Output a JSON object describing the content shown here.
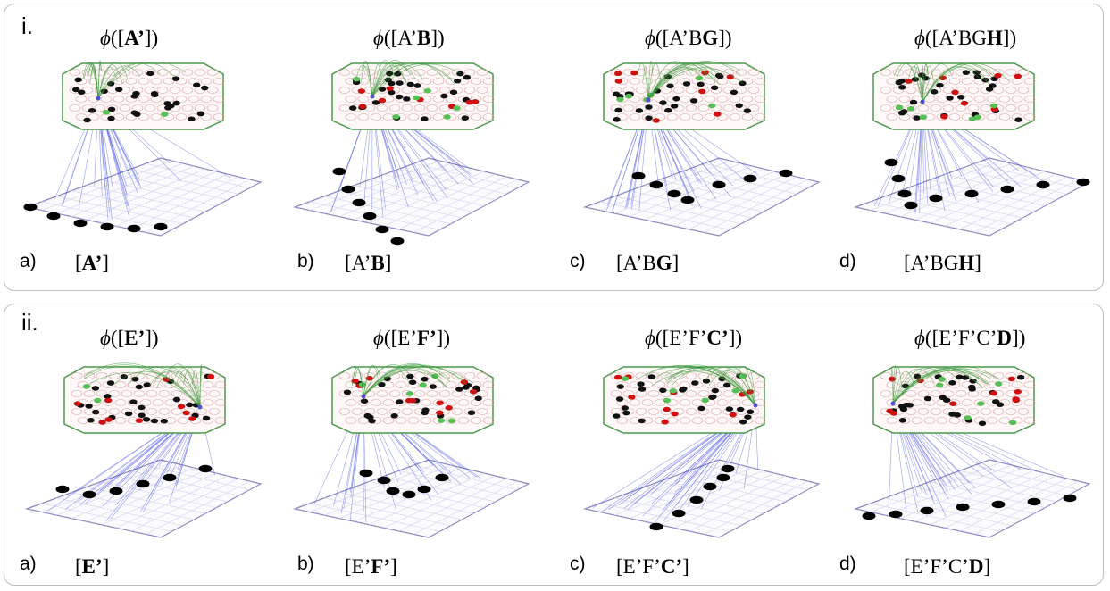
{
  "panels": [
    {
      "label": "i.",
      "items": [
        {
          "sub": "a)",
          "phi_sym": "ϕ",
          "phi_prefix": "([",
          "plain": "",
          "bold": "A’",
          "phi_suffix": "])",
          "seq_open": "[",
          "seq_close": "]"
        },
        {
          "sub": "b)",
          "phi_sym": "ϕ",
          "phi_prefix": "([",
          "plain": "A’",
          "bold": "B",
          "phi_suffix": "])",
          "seq_open": "[",
          "seq_close": "]"
        },
        {
          "sub": "c)",
          "phi_sym": "ϕ",
          "phi_prefix": "([",
          "plain": "A’B",
          "bold": "G",
          "phi_suffix": "])",
          "seq_open": "[",
          "seq_close": "]"
        },
        {
          "sub": "d)",
          "phi_sym": "ϕ",
          "phi_prefix": "([",
          "plain": "A’BG",
          "bold": "H",
          "phi_suffix": "])",
          "seq_open": "[",
          "seq_close": "]"
        }
      ]
    },
    {
      "label": "ii.",
      "items": [
        {
          "sub": "a)",
          "phi_sym": "ϕ",
          "phi_prefix": "([",
          "plain": "",
          "bold": "E’",
          "phi_suffix": "])",
          "seq_open": "[",
          "seq_close": "]"
        },
        {
          "sub": "b)",
          "phi_sym": "ϕ",
          "phi_prefix": "([",
          "plain": "E’",
          "bold": "F’",
          "phi_suffix": "])",
          "seq_open": "[",
          "seq_close": "]"
        },
        {
          "sub": "c)",
          "phi_sym": "ϕ",
          "phi_prefix": "([",
          "plain": "E’F’",
          "bold": "C’",
          "phi_suffix": "])",
          "seq_open": "[",
          "seq_close": "]"
        },
        {
          "sub": "d)",
          "phi_sym": "ϕ",
          "phi_prefix": "([",
          "plain": "E’F’C’",
          "bold": "D",
          "phi_suffix": "])",
          "seq_open": "[",
          "seq_close": "]"
        }
      ]
    }
  ],
  "colors": {
    "panel_border": "#bdbdbd",
    "hex_outline": "#4a9a4a",
    "ring": "#d9a0a0",
    "active_node": "#111111",
    "predicted_node": "#d01010",
    "learned_node": "#55c055",
    "projection_line": "#3f4fe0",
    "recurrent_arc": "#3a9a3a",
    "input_grid": "#8a8ac0",
    "input_node": "#000000"
  },
  "icons": [
    "hexagonal-network-icon",
    "input-grid-icon"
  ]
}
